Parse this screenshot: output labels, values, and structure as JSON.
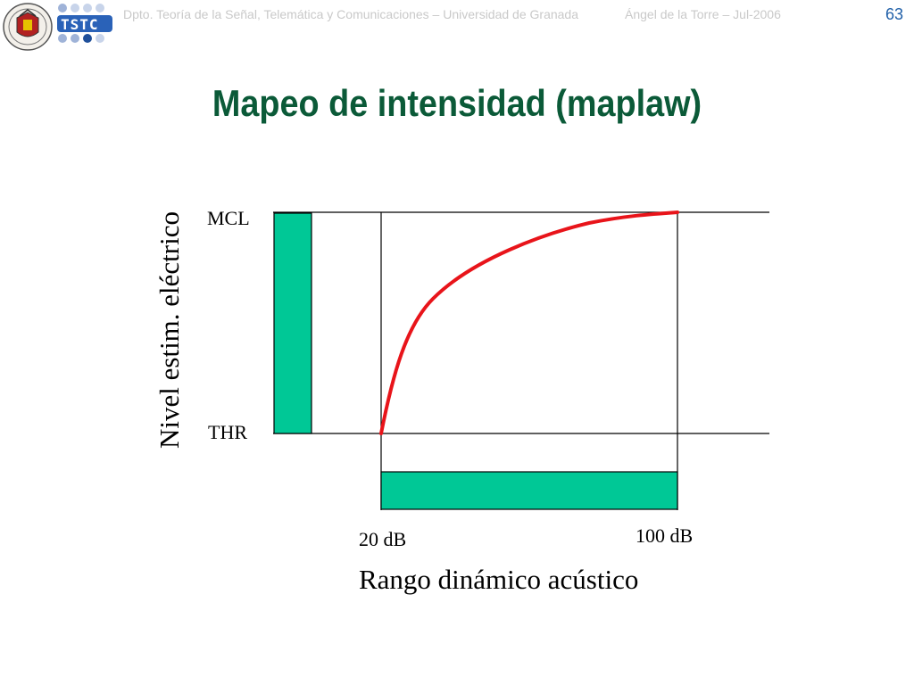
{
  "header": {
    "institution": "Dpto. Teoría de la Señal, Telemática y Comunicaciones – Universidad de Granada",
    "author": "Ángel de la Torre – Jul-2006",
    "page_number": "63",
    "logo_text": "TSTC"
  },
  "title": "Mapeo de intensidad (maplaw)",
  "diagram": {
    "y_axis_label": "Nivel estim. eléctrico",
    "mcl_label": "MCL",
    "thr_label": "THR",
    "x_start_label": "20 dB",
    "x_end_label": "100 dB",
    "x_axis_label": "Rango dinámico acústico",
    "colors": {
      "bar": "#00c896",
      "curve": "#e8141a",
      "line": "#000000"
    }
  }
}
